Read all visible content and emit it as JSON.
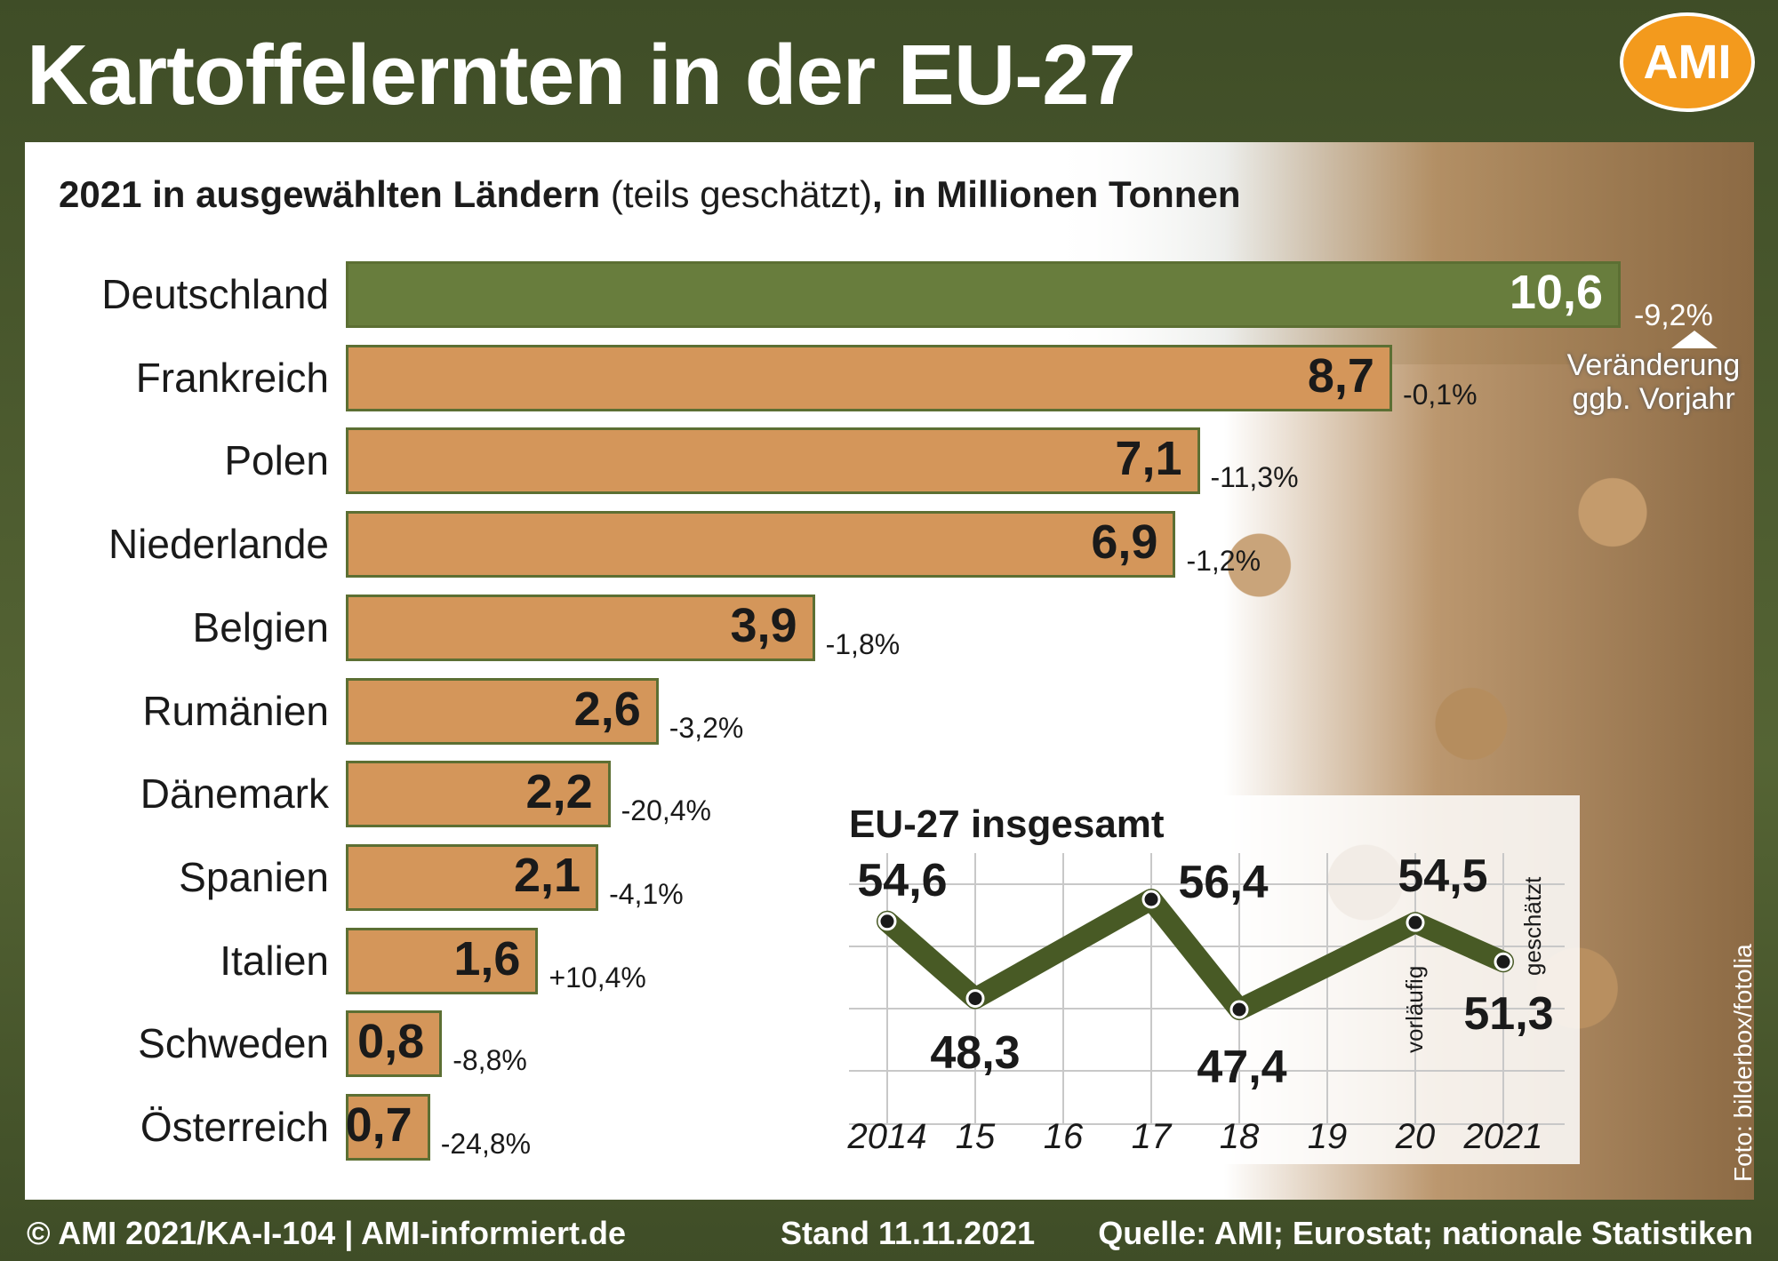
{
  "title": "Kartoffelernten in der EU-27",
  "logo": "AMI",
  "subtitle": {
    "bold_a": "2021 in ausgewählten Ländern",
    "normal": " (teils geschätzt)",
    "bold_b": ", in Millionen Tonnen"
  },
  "change_legend": {
    "line1": "Veränderung",
    "line2": "ggb. Vorjahr"
  },
  "chart_data": [
    {
      "type": "bar",
      "title": "2021 in ausgewählten Ländern (teils geschätzt), in Millionen Tonnen",
      "categories": [
        "Deutschland",
        "Frankreich",
        "Polen",
        "Niederlande",
        "Belgien",
        "Rumänien",
        "Dänemark",
        "Spanien",
        "Italien",
        "Schweden",
        "Österreich"
      ],
      "values": [
        10.6,
        8.7,
        7.1,
        6.9,
        3.9,
        2.6,
        2.2,
        2.1,
        1.6,
        0.8,
        0.7
      ],
      "value_labels": [
        "10,6",
        "8,7",
        "7,1",
        "6,9",
        "3,9",
        "2,6",
        "2,2",
        "2,1",
        "1,6",
        "0,8",
        "0,7"
      ],
      "change_labels": [
        "-9,2%",
        "-0,1%",
        "-11,3%",
        "-1,2%",
        "-1,8%",
        "-3,2%",
        "-20,4%",
        "-4,1%",
        "+10,4%",
        "-8,8%",
        "-24,8%"
      ],
      "colors": {
        "highlight": "#687d3d",
        "default": "#d4965a",
        "border": "#5c6f33"
      }
    },
    {
      "type": "line",
      "title": "EU-27 insgesamt",
      "x": [
        "2014",
        "15",
        "16",
        "17",
        "18",
        "19",
        "20",
        "2021"
      ],
      "values": [
        54.6,
        48.3,
        null,
        56.4,
        47.4,
        null,
        54.5,
        51.3
      ],
      "labeled_points": [
        {
          "x": "2014",
          "label": "54,6"
        },
        {
          "x": "15",
          "label": "48,3"
        },
        {
          "x": "17",
          "label": "56,4"
        },
        {
          "x": "18",
          "label": "47,4"
        },
        {
          "x": "20",
          "label": "54,5"
        },
        {
          "x": "2021",
          "label": "51,3"
        }
      ],
      "point_notes": {
        "20": "vorläufig",
        "2021": "geschätzt"
      },
      "grid": true,
      "colors": {
        "line": "#485a25"
      }
    }
  ],
  "footer": {
    "left": "© AMI 2021/KA-I-104 | AMI-informiert.de",
    "middle": "Stand 11.11.2021",
    "right": "Quelle: AMI; Eurostat; nationale Statistiken"
  },
  "photo_credit": "Foto: bilderbox/fotolia"
}
